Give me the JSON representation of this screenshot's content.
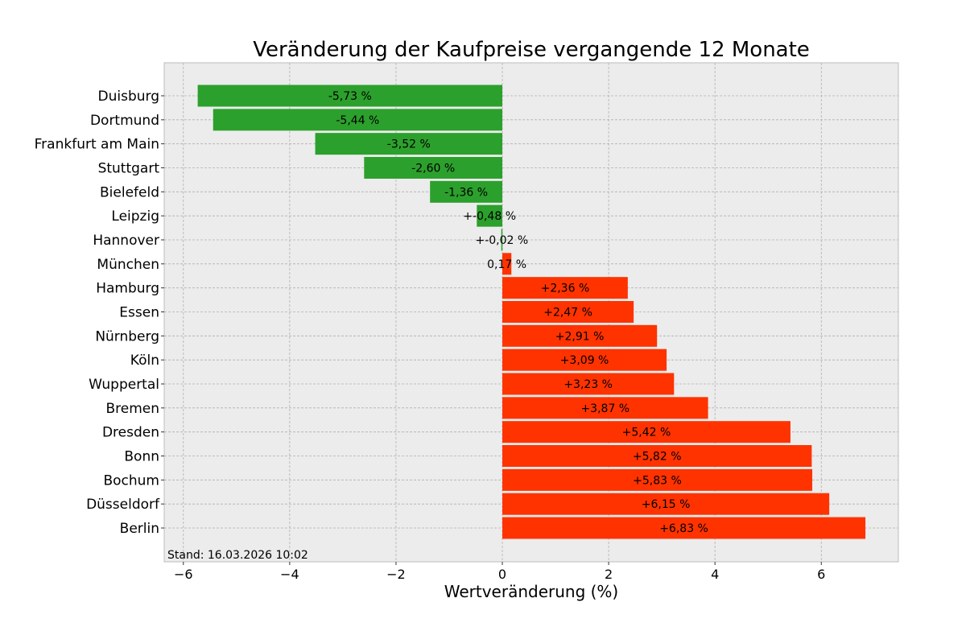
{
  "chart_data": {
    "type": "bar",
    "orientation": "horizontal",
    "title": "Veränderung der Kaufpreise vergangende 12 Monate",
    "xlabel": "Wertveränderung (%)",
    "ylabel": "",
    "xlim": [
      -6.36,
      7.45
    ],
    "xticks": [
      -6,
      -4,
      -2,
      0,
      2,
      4,
      6
    ],
    "xtick_labels": [
      "−6",
      "−4",
      "−2",
      "0",
      "2",
      "4",
      "6"
    ],
    "grid": true,
    "annotation": "Stand: 16.03.2026 10:02",
    "colors": {
      "negative": "#2ca02c",
      "positive": "#ff3300",
      "background": "#ececec"
    },
    "categories": [
      "Duisburg",
      "Dortmund",
      "Frankfurt am Main",
      "Stuttgart",
      "Bielefeld",
      "Leipzig",
      "Hannover",
      "München",
      "Hamburg",
      "Essen",
      "Nürnberg",
      "Köln",
      "Wuppertal",
      "Bremen",
      "Dresden",
      "Bonn",
      "Bochum",
      "Düsseldorf",
      "Berlin"
    ],
    "values": [
      -5.73,
      -5.44,
      -3.52,
      -2.6,
      -1.36,
      -0.48,
      -0.02,
      0.17,
      2.36,
      2.47,
      2.91,
      3.09,
      3.23,
      3.87,
      5.42,
      5.82,
      5.83,
      6.15,
      6.83
    ],
    "data_labels": [
      "-5,73 %",
      "-5,44 %",
      "-3,52 %",
      "-2,60 %",
      "-1,36 %",
      "+-0,48 %",
      "+-0,02 %",
      "0,17 %",
      "+2,36 %",
      "+2,47 %",
      "+2,91 %",
      "+3,09 %",
      "+3,23 %",
      "+3,87 %",
      "+5,42 %",
      "+5,82 %",
      "+5,83 %",
      "+6,15 %",
      "+6,83 %"
    ]
  }
}
